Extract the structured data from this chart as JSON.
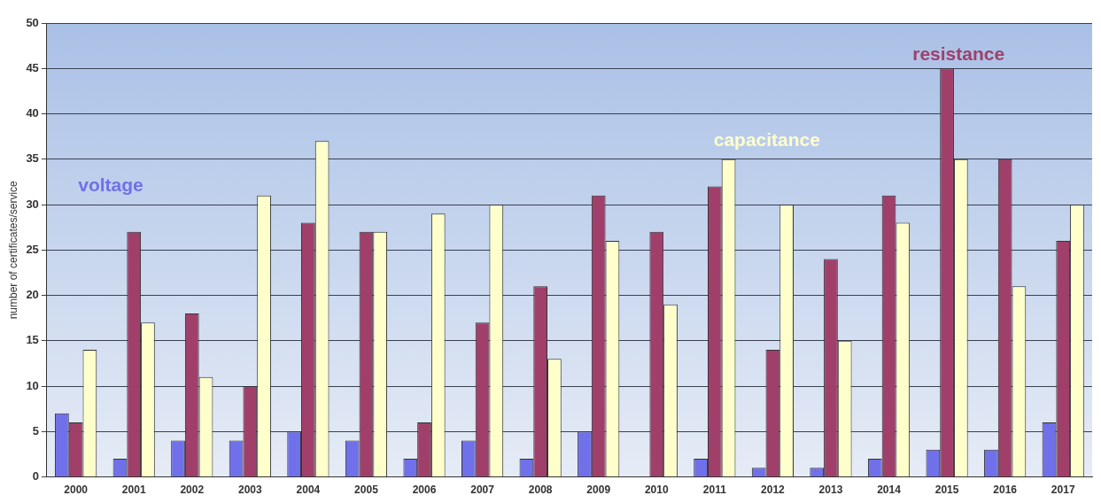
{
  "chart_data": {
    "type": "bar",
    "ylabel": "number of certificates/service",
    "categories": [
      "2000",
      "2001",
      "2002",
      "2003",
      "2004",
      "2005",
      "2006",
      "2007",
      "2008",
      "2009",
      "2010",
      "2011",
      "2012",
      "2013",
      "2014",
      "2015",
      "2016",
      "2017"
    ],
    "series": [
      {
        "name": "voltage",
        "color": "#7070ea",
        "values": [
          7,
          2,
          4,
          4,
          5,
          4,
          2,
          4,
          2,
          5,
          0,
          2,
          1,
          1,
          2,
          3,
          3,
          6
        ]
      },
      {
        "name": "resistance",
        "color": "#a0406a",
        "values": [
          6,
          27,
          18,
          10,
          28,
          27,
          6,
          17,
          21,
          31,
          27,
          32,
          14,
          24,
          31,
          45,
          35,
          26
        ]
      },
      {
        "name": "capacitance",
        "color": "#ffffcc",
        "values": [
          14,
          17,
          11,
          31,
          37,
          27,
          29,
          30,
          13,
          26,
          19,
          35,
          30,
          15,
          28,
          35,
          21,
          30
        ]
      }
    ],
    "ylim": [
      0,
      50
    ],
    "yticks": [
      0,
      5,
      10,
      15,
      20,
      25,
      30,
      35,
      40,
      45,
      50
    ],
    "grid": "y",
    "legend": false
  }
}
